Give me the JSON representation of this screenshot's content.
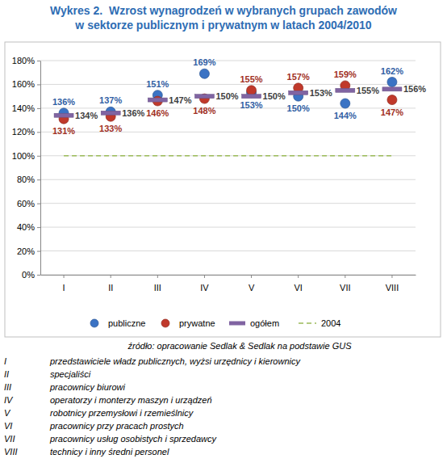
{
  "chart_data": {
    "type": "scatter",
    "title": [
      "Wykres 2.  Wzrost wynagrodzeń w wybranych grupach zawodów",
      "w sektorze publicznym i prywatnym w latach 2004/2010"
    ],
    "categories": [
      "I",
      "II",
      "III",
      "IV",
      "V",
      "VI",
      "VII",
      "VIII"
    ],
    "series": [
      {
        "name": "publiczne",
        "color": "#3b73c4",
        "marker": "circle",
        "values": [
          136,
          137,
          151,
          169,
          153,
          150,
          144,
          162
        ],
        "value_labels": [
          "136%",
          "137%",
          "151%",
          "169%",
          "153%",
          "150%",
          "144%",
          "162%"
        ]
      },
      {
        "name": "prywatne",
        "color": "#c0392b",
        "marker": "circle",
        "values": [
          131,
          133,
          146,
          148,
          155,
          157,
          159,
          147
        ],
        "value_labels": [
          "131%",
          "133%",
          "146%",
          "148%",
          "155%",
          "157%",
          "159%",
          "147%"
        ]
      },
      {
        "name": "ogółem",
        "color": "#8064a2",
        "marker": "dash",
        "values": [
          134,
          136,
          147,
          150,
          150,
          153,
          155,
          156
        ],
        "value_labels": [
          "134%",
          "136%",
          "147%",
          "150%",
          "150%",
          "153%",
          "155%",
          "156%"
        ]
      },
      {
        "name": "2004",
        "color": "#9bbb59",
        "type": "line",
        "line_style": "dashed",
        "values": [
          100,
          100,
          100,
          100,
          100,
          100,
          100,
          100
        ]
      }
    ],
    "ylim": [
      0,
      180
    ],
    "yticks": [
      {
        "value": 0,
        "label": "0%"
      },
      {
        "value": 20,
        "label": "20%"
      },
      {
        "value": 40,
        "label": "40%"
      },
      {
        "value": 60,
        "label": "60%"
      },
      {
        "value": 80,
        "label": "80%"
      },
      {
        "value": 100,
        "label": "100%"
      },
      {
        "value": 120,
        "label": "120%"
      },
      {
        "value": 140,
        "label": "140%"
      },
      {
        "value": 160,
        "label": "160%"
      },
      {
        "value": 180,
        "label": "180%"
      }
    ],
    "grid": true,
    "data_labels": true,
    "legend": "bottom",
    "source": "źródło: opracowanie Sedlak & Sedlak na podstawie GUS",
    "category_legend": [
      {
        "key": "I",
        "text": "przedstawiciele władz publicznych, wyżsi urzędnicy i kierownicy"
      },
      {
        "key": "II",
        "text": "specjaliści"
      },
      {
        "key": "III",
        "text": "pracownicy biurowi"
      },
      {
        "key": "IV",
        "text": "operatorzy i monterzy maszyn i urządzeń"
      },
      {
        "key": "V",
        "text": "robotnicy przemysłowi i rzemieślnicy"
      },
      {
        "key": "VI",
        "text": "pracownicy przy pracach prostych"
      },
      {
        "key": "VII",
        "text": "pracownicy usług osobistych i sprzedawcy"
      },
      {
        "key": "VIII",
        "text": "technicy i inny średni personel"
      }
    ]
  }
}
